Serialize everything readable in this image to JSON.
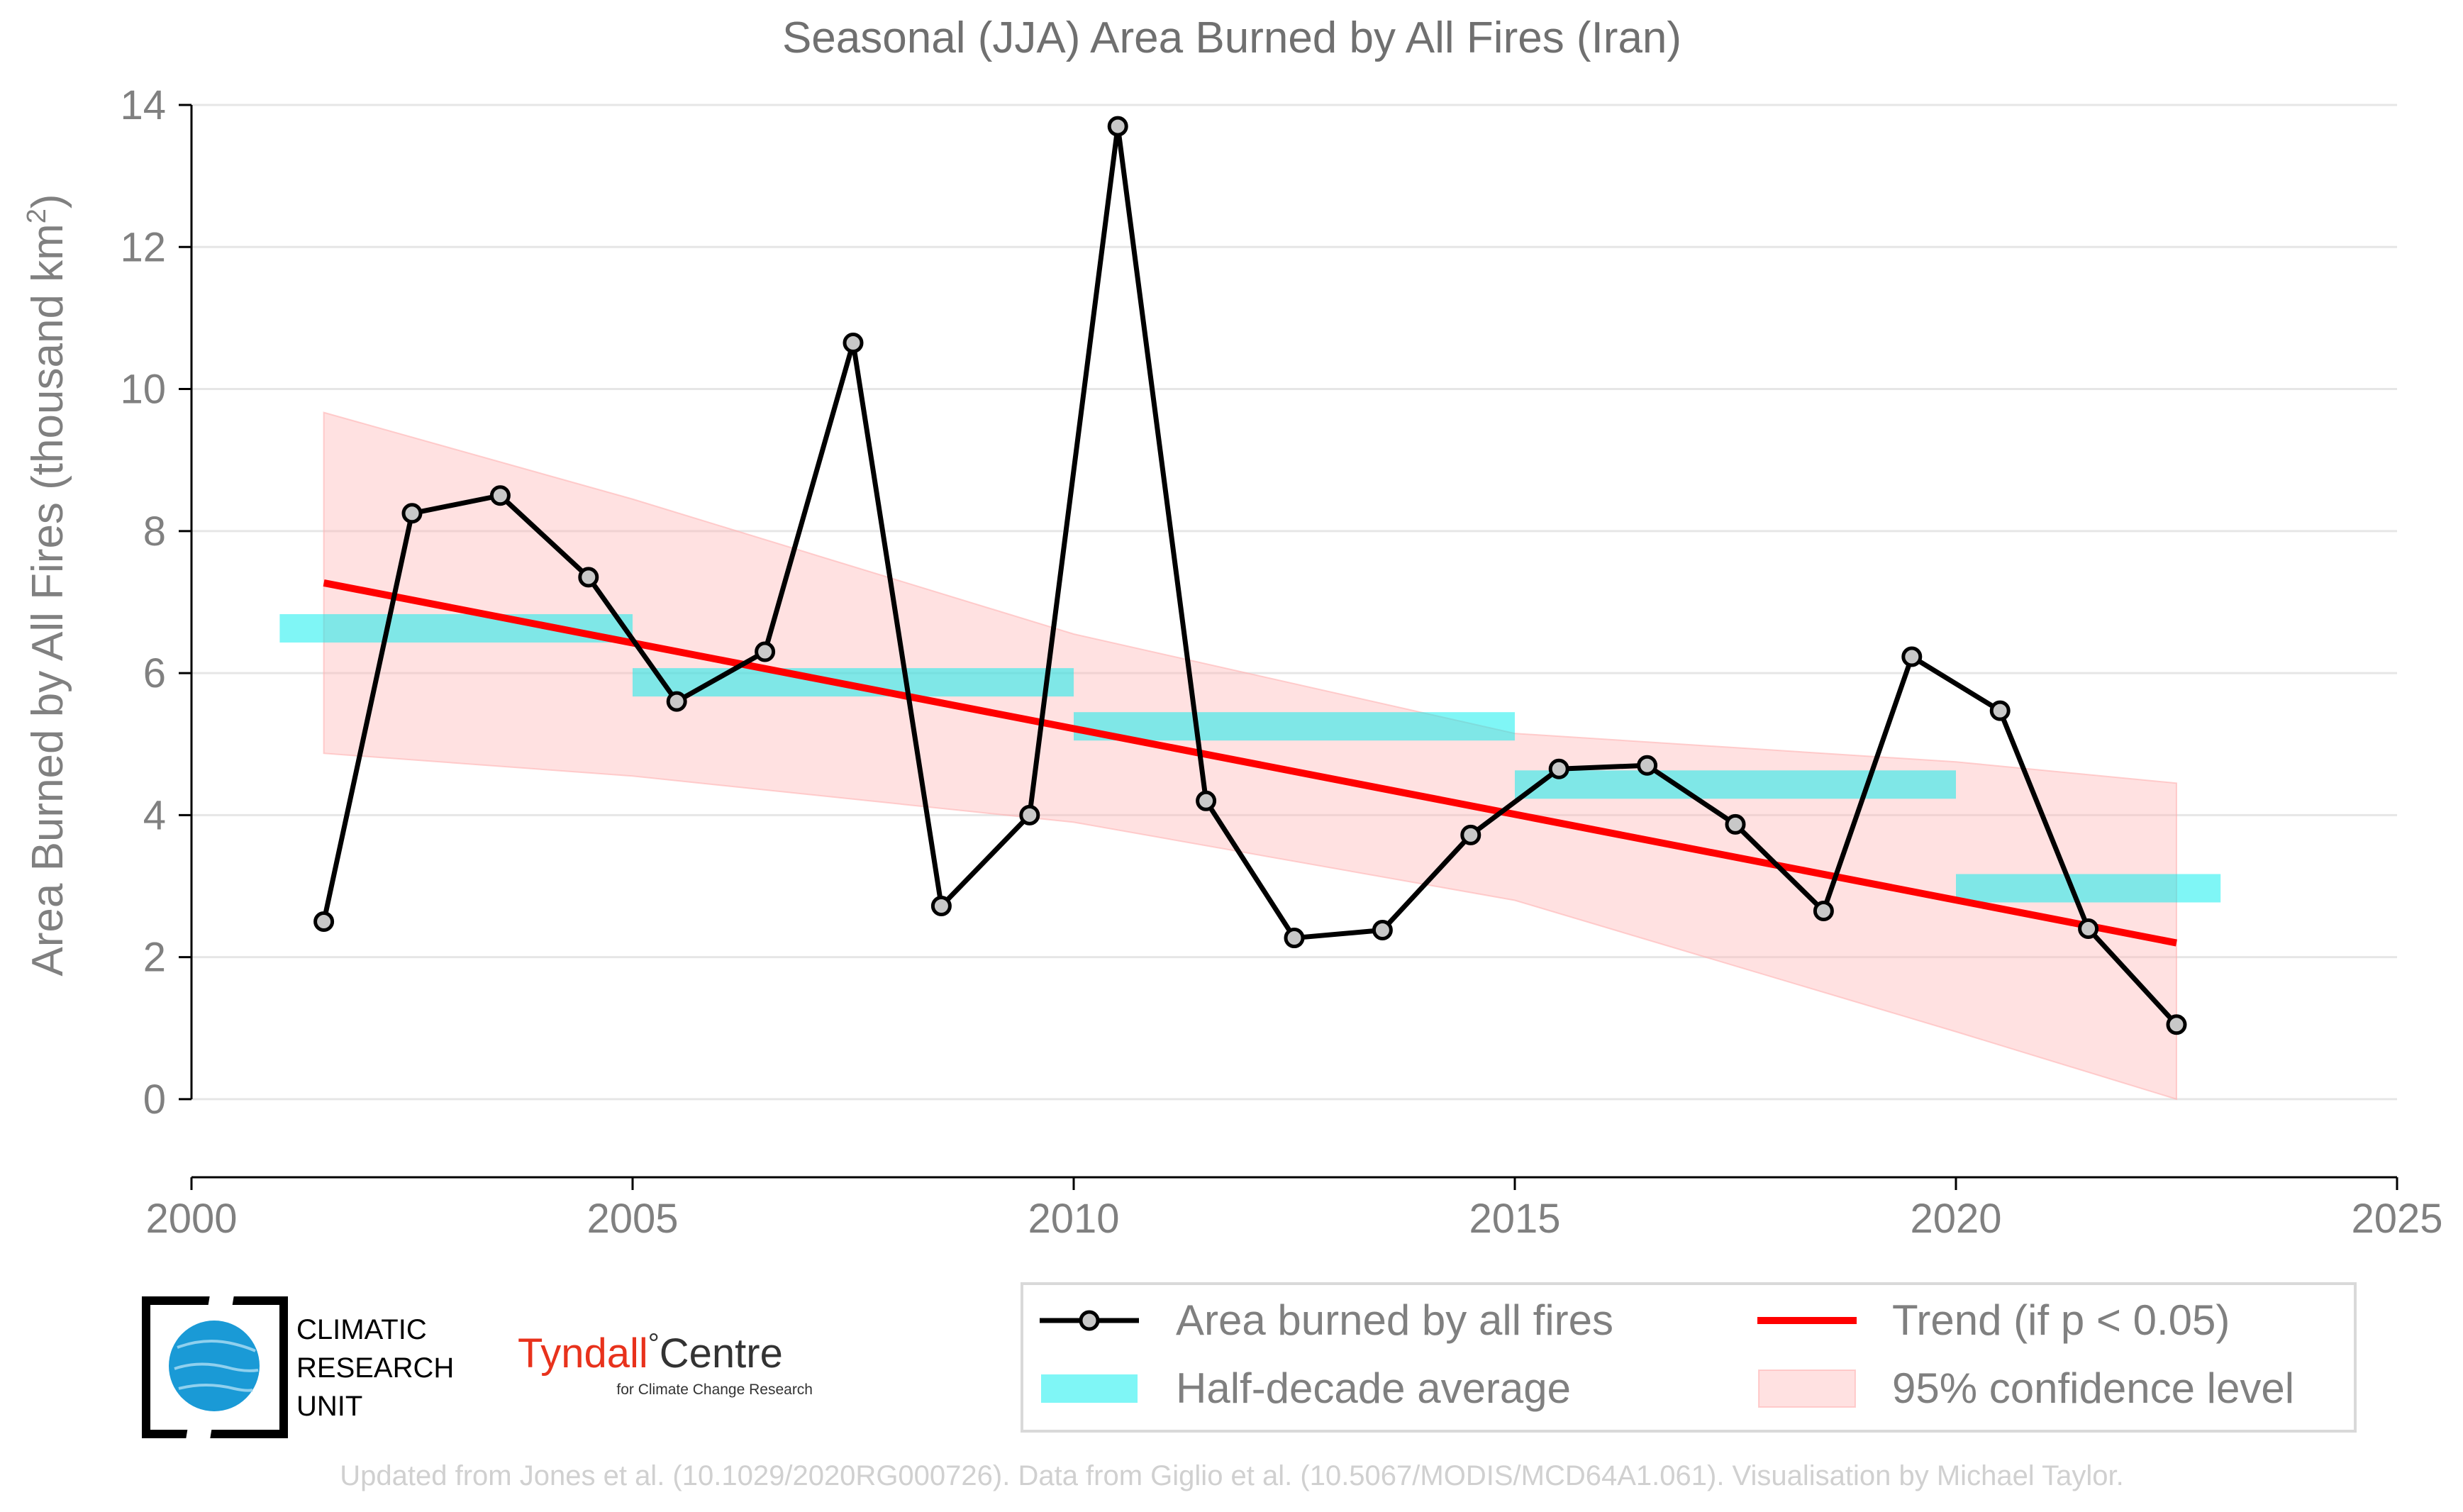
{
  "chart_data": {
    "type": "line",
    "title": "Seasonal (JJA) Area Burned by All Fires (Iran)",
    "ylabel_main": "Area Burned by All Fires (thousand km",
    "ylabel_sup": "2",
    "ylabel_close": ")",
    "xlim": [
      2000,
      2025
    ],
    "ylim": [
      -1.1,
      14.3
    ],
    "xticks": [
      2000,
      2005,
      2010,
      2015,
      2020,
      2025
    ],
    "yticks": [
      0,
      2,
      4,
      6,
      8,
      10,
      12,
      14
    ],
    "grid": "horizontal",
    "colors": {
      "series": "#000000",
      "marker_fill": "#c8c8c8",
      "trend": "#ff0000",
      "half_decade": "#00eeee",
      "confidence": "#ffb3b3",
      "grid": "#e6e6e6",
      "axis": "#000000"
    },
    "series": [
      {
        "name": "Area burned by all fires",
        "x": [
          2001.5,
          2002.5,
          2003.5,
          2004.5,
          2005.5,
          2006.5,
          2007.5,
          2008.5,
          2009.5,
          2010.5,
          2011.5,
          2012.5,
          2013.5,
          2014.5,
          2015.5,
          2016.5,
          2017.5,
          2018.5,
          2019.5,
          2020.5,
          2021.5,
          2022.5
        ],
        "values": [
          2.5,
          8.25,
          8.5,
          7.35,
          5.6,
          6.3,
          10.65,
          2.72,
          4.0,
          13.7,
          4.2,
          2.27,
          2.38,
          3.72,
          4.65,
          4.7,
          3.87,
          2.65,
          6.23,
          5.47,
          2.4,
          1.05
        ]
      }
    ],
    "half_decade_average": {
      "name": "Half-decade average",
      "segments": [
        {
          "x0": 2001.0,
          "x1": 2005.0,
          "value": 6.63
        },
        {
          "x0": 2005.0,
          "x1": 2010.0,
          "value": 5.87
        },
        {
          "x0": 2010.0,
          "x1": 2015.0,
          "value": 5.25
        },
        {
          "x0": 2015.0,
          "x1": 2020.0,
          "value": 4.43
        },
        {
          "x0": 2020.0,
          "x1": 2023.0,
          "value": 2.97
        }
      ]
    },
    "trend": {
      "name": "Trend (if p < 0.05)",
      "x": [
        2001.5,
        2022.5
      ],
      "values": [
        7.27,
        2.2
      ]
    },
    "confidence": {
      "name": "95% confidence level",
      "x": [
        2001.5,
        2005.0,
        2010.0,
        2015.0,
        2020.0,
        2022.5
      ],
      "upper": [
        9.67,
        8.45,
        6.55,
        5.15,
        4.75,
        4.45
      ],
      "lower": [
        4.87,
        4.55,
        3.9,
        2.8,
        0.95,
        0.0
      ]
    },
    "legend_position": "bottom-right"
  },
  "logos": {
    "cru_lines": [
      "CLIMATIC",
      "RESEARCH",
      "UNIT"
    ],
    "tyndall_name": "Tyndall",
    "tyndall_degree": "°",
    "tyndall_centre": "Centre",
    "tyndall_sub": "for Climate Change Research"
  },
  "footer": {
    "credit": "Updated from Jones et al. (10.1029/2020RG000726). Data from Giglio et al. (10.5067/MODIS/MCD64A1.061). Visualisation by Michael Taylor."
  }
}
